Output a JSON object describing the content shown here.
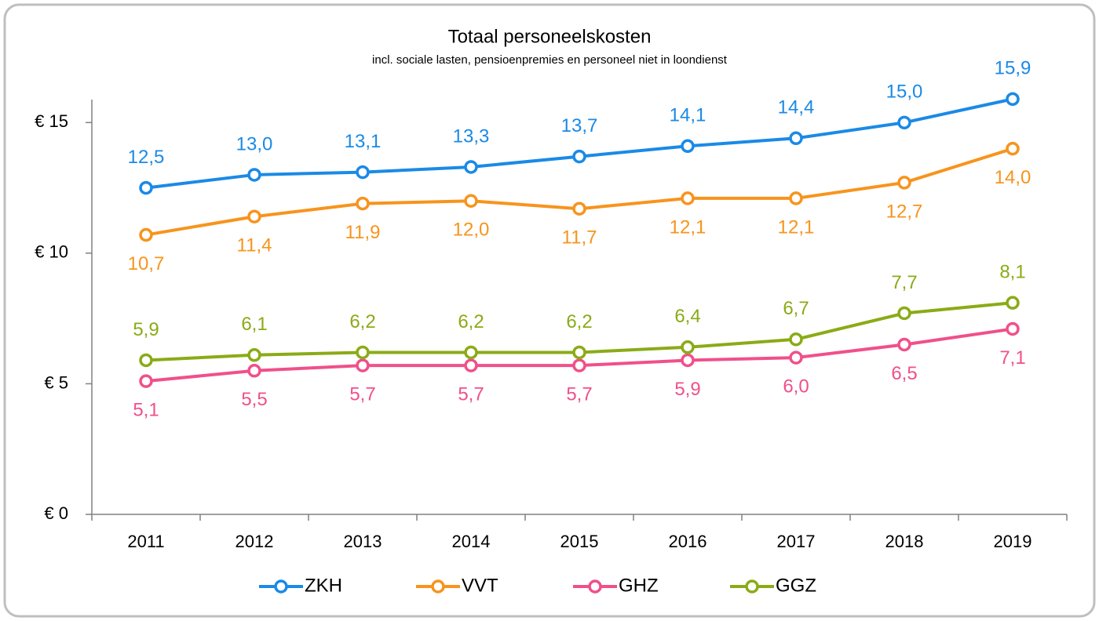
{
  "chart_data": {
    "type": "line",
    "title": "Totaal personeelskosten",
    "subtitle": "incl. sociale lasten, pensioenpremies en personeel niet in loondienst",
    "categories": [
      "2011",
      "2012",
      "2013",
      "2014",
      "2015",
      "2016",
      "2017",
      "2018",
      "2019"
    ],
    "series": [
      {
        "name": "ZKH",
        "color": "#1a8ae6",
        "values": [
          12.5,
          13.0,
          13.1,
          13.3,
          13.7,
          14.1,
          14.4,
          15.0,
          15.9
        ],
        "value_labels": [
          "12,5",
          "13,0",
          "13,1",
          "13,3",
          "13,7",
          "14,1",
          "14,4",
          "15,0",
          "15,9"
        ]
      },
      {
        "name": "VVT",
        "color": "#f7941d",
        "values": [
          10.7,
          11.4,
          11.9,
          12.0,
          11.7,
          12.1,
          12.1,
          12.7,
          14.0
        ],
        "value_labels": [
          "10,7",
          "11,4",
          "11,9",
          "12,0",
          "11,7",
          "12,1",
          "12,1",
          "12,7",
          "14,0"
        ]
      },
      {
        "name": "GHZ",
        "color": "#f0508a",
        "values": [
          5.1,
          5.5,
          5.7,
          5.7,
          5.7,
          5.9,
          6.0,
          6.5,
          7.1
        ],
        "value_labels": [
          "5,1",
          "5,5",
          "5,7",
          "5,7",
          "5,7",
          "5,9",
          "6,0",
          "6,5",
          "7,1"
        ]
      },
      {
        "name": "GGZ",
        "color": "#8aab16",
        "values": [
          5.9,
          6.1,
          6.2,
          6.2,
          6.2,
          6.4,
          6.7,
          7.7,
          8.1
        ],
        "value_labels": [
          "5,9",
          "6,1",
          "6,2",
          "6,2",
          "6,2",
          "6,4",
          "6,7",
          "7,7",
          "8,1"
        ]
      }
    ],
    "ylim": [
      0,
      16
    ],
    "yticks": [
      {
        "value": 0,
        "label": "€ 0"
      },
      {
        "value": 5,
        "label": "€ 5"
      },
      {
        "value": 10,
        "label": "€ 10"
      },
      {
        "value": 15,
        "label": "€ 15"
      }
    ],
    "legend": "bottom"
  }
}
